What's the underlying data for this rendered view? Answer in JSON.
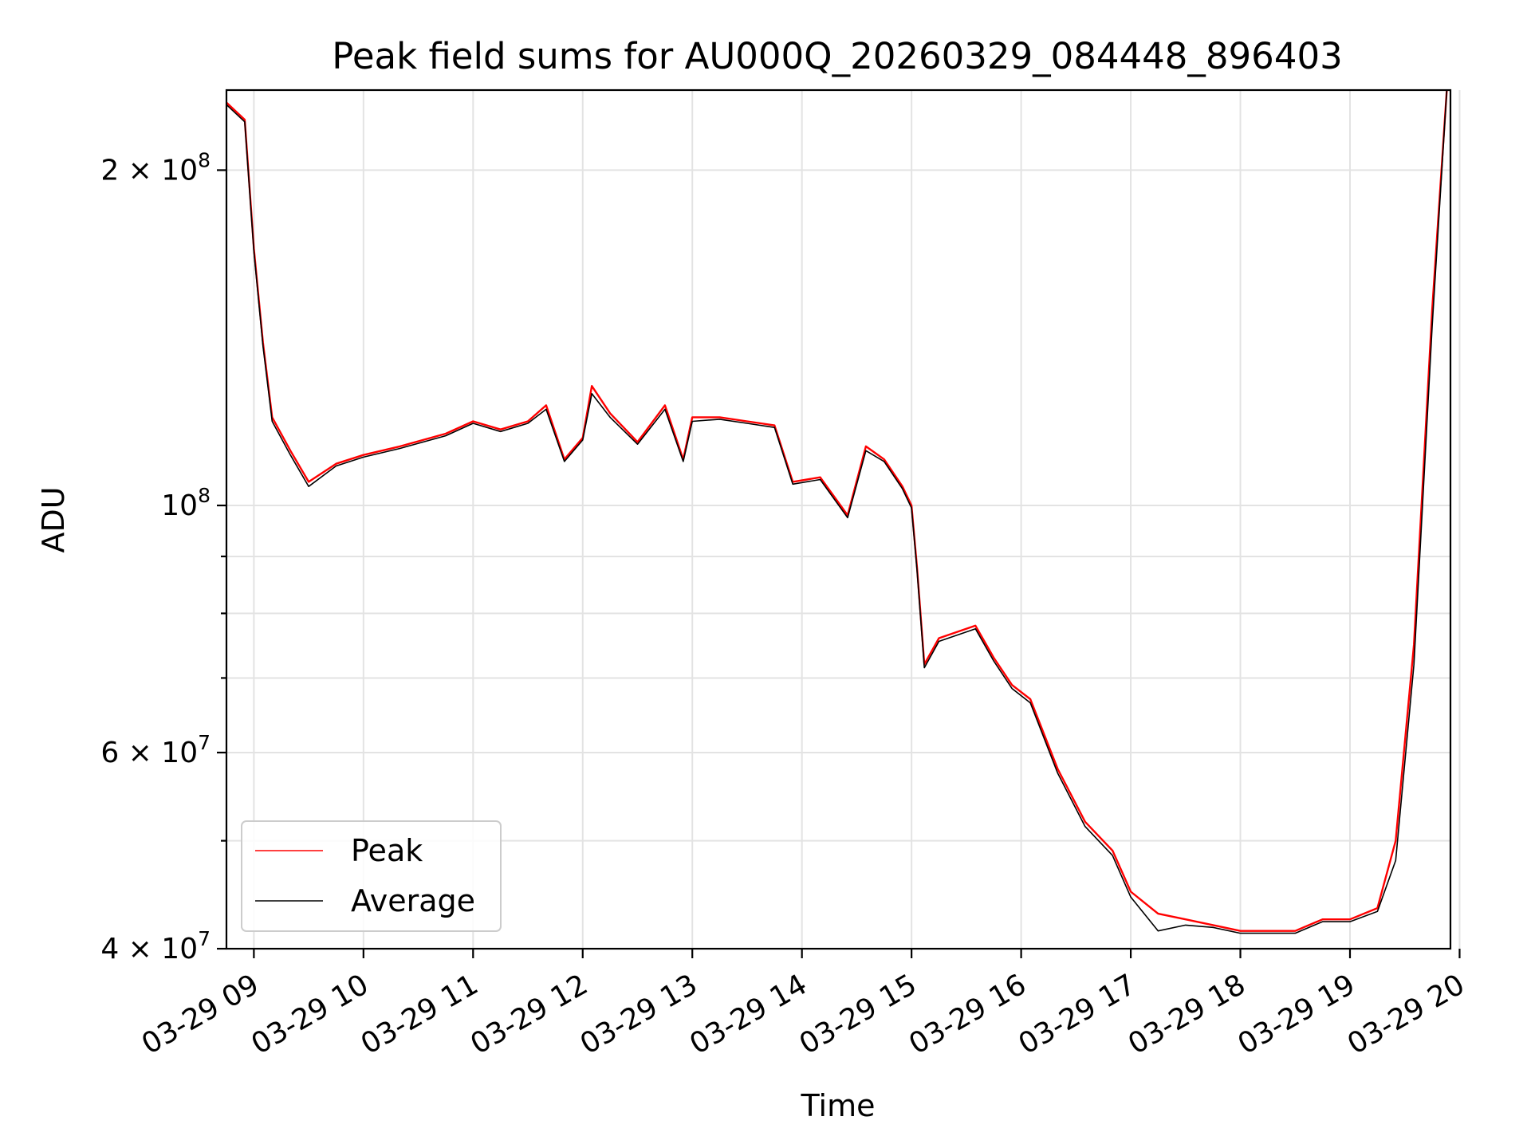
{
  "chart_data": {
    "type": "line",
    "title": "Peak field sums for AU000Q_20260329_084448_896403",
    "xlabel": "Time",
    "ylabel": "ADU",
    "y_scale": "log",
    "grid": true,
    "legend_position": "lower-left",
    "xlim": [
      "2026-03-29 08:45",
      "2026-03-29 19:55"
    ],
    "ylim": [
      40000000,
      236000000
    ],
    "x_ticks": [
      "03-29 09",
      "03-29 10",
      "03-29 11",
      "03-29 12",
      "03-29 13",
      "03-29 14",
      "03-29 15",
      "03-29 16",
      "03-29 17",
      "03-29 18",
      "03-29 19",
      "03-29 20"
    ],
    "y_major_ticks": [
      {
        "value": 40000000,
        "mantissa": "4",
        "exponent": "7"
      },
      {
        "value": 60000000,
        "mantissa": "6",
        "exponent": "7"
      },
      {
        "value": 100000000,
        "mantissa": "",
        "exponent": "8"
      },
      {
        "value": 200000000,
        "mantissa": "2",
        "exponent": "8"
      }
    ],
    "y_minor_grid": [
      50000000,
      70000000,
      80000000,
      90000000,
      300000000
    ],
    "series": [
      {
        "name": "Peak",
        "color": "#ff0000",
        "points": [
          [
            "08:45",
            230000000
          ],
          [
            "08:55",
            222000000
          ],
          [
            "09:00",
            170000000
          ],
          [
            "09:05",
            140000000
          ],
          [
            "09:10",
            120000000
          ],
          [
            "09:20",
            112000000
          ],
          [
            "09:30",
            105000000
          ],
          [
            "09:45",
            109000000
          ],
          [
            "10:00",
            111000000
          ],
          [
            "10:20",
            113000000
          ],
          [
            "10:45",
            116000000
          ],
          [
            "11:00",
            119000000
          ],
          [
            "11:15",
            117000000
          ],
          [
            "11:30",
            119000000
          ],
          [
            "11:40",
            123000000
          ],
          [
            "11:50",
            110000000
          ],
          [
            "12:00",
            115000000
          ],
          [
            "12:05",
            128000000
          ],
          [
            "12:15",
            121000000
          ],
          [
            "12:30",
            114000000
          ],
          [
            "12:45",
            123000000
          ],
          [
            "12:55",
            110000000
          ],
          [
            "13:00",
            120000000
          ],
          [
            "13:15",
            120000000
          ],
          [
            "13:30",
            119000000
          ],
          [
            "13:45",
            118000000
          ],
          [
            "13:55",
            105000000
          ],
          [
            "14:10",
            106000000
          ],
          [
            "14:25",
            98000000
          ],
          [
            "14:35",
            113000000
          ],
          [
            "14:45",
            110000000
          ],
          [
            "14:55",
            104000000
          ],
          [
            "15:00",
            100000000
          ],
          [
            "15:03",
            88000000
          ],
          [
            "15:07",
            72000000
          ],
          [
            "15:15",
            76000000
          ],
          [
            "15:25",
            77000000
          ],
          [
            "15:35",
            78000000
          ],
          [
            "15:45",
            73000000
          ],
          [
            "15:55",
            69000000
          ],
          [
            "16:05",
            67000000
          ],
          [
            "16:20",
            58000000
          ],
          [
            "16:35",
            52000000
          ],
          [
            "16:50",
            49000000
          ],
          [
            "17:00",
            45000000
          ],
          [
            "17:15",
            43000000
          ],
          [
            "17:30",
            42500000
          ],
          [
            "17:45",
            42000000
          ],
          [
            "18:00",
            41500000
          ],
          [
            "18:15",
            41500000
          ],
          [
            "18:30",
            41500000
          ],
          [
            "18:45",
            42500000
          ],
          [
            "19:00",
            42500000
          ],
          [
            "19:15",
            43500000
          ],
          [
            "19:25",
            50000000
          ],
          [
            "19:35",
            75000000
          ],
          [
            "19:45",
            150000000
          ],
          [
            "19:53",
            236000000
          ]
        ]
      },
      {
        "name": "Average",
        "color": "#000000",
        "points": [
          [
            "08:45",
            229000000
          ],
          [
            "08:55",
            221000000
          ],
          [
            "09:00",
            169000000
          ],
          [
            "09:05",
            139000000
          ],
          [
            "09:10",
            119000000
          ],
          [
            "09:20",
            111000000
          ],
          [
            "09:30",
            104000000
          ],
          [
            "09:45",
            108500000
          ],
          [
            "10:00",
            110500000
          ],
          [
            "10:20",
            112500000
          ],
          [
            "10:45",
            115500000
          ],
          [
            "11:00",
            118500000
          ],
          [
            "11:15",
            116500000
          ],
          [
            "11:30",
            118500000
          ],
          [
            "11:40",
            122000000
          ],
          [
            "11:50",
            109500000
          ],
          [
            "12:00",
            114500000
          ],
          [
            "12:05",
            126000000
          ],
          [
            "12:15",
            120000000
          ],
          [
            "12:30",
            113500000
          ],
          [
            "12:45",
            122000000
          ],
          [
            "12:55",
            109500000
          ],
          [
            "13:00",
            119000000
          ],
          [
            "13:15",
            119500000
          ],
          [
            "13:30",
            118500000
          ],
          [
            "13:45",
            117500000
          ],
          [
            "13:55",
            104500000
          ],
          [
            "14:10",
            105500000
          ],
          [
            "14:25",
            97500000
          ],
          [
            "14:35",
            112000000
          ],
          [
            "14:45",
            109500000
          ],
          [
            "14:55",
            103500000
          ],
          [
            "15:00",
            99500000
          ],
          [
            "15:03",
            87500000
          ],
          [
            "15:07",
            71500000
          ],
          [
            "15:15",
            75500000
          ],
          [
            "15:25",
            76500000
          ],
          [
            "15:35",
            77500000
          ],
          [
            "15:45",
            72500000
          ],
          [
            "15:55",
            68500000
          ],
          [
            "16:05",
            66500000
          ],
          [
            "16:20",
            57500000
          ],
          [
            "16:35",
            51500000
          ],
          [
            "16:50",
            48500000
          ],
          [
            "17:00",
            44500000
          ],
          [
            "17:15",
            41500000
          ],
          [
            "17:30",
            42000000
          ],
          [
            "17:45",
            41800000
          ],
          [
            "18:00",
            41300000
          ],
          [
            "18:15",
            41300000
          ],
          [
            "18:30",
            41300000
          ],
          [
            "18:45",
            42300000
          ],
          [
            "19:00",
            42300000
          ],
          [
            "19:15",
            43200000
          ],
          [
            "19:25",
            48000000
          ],
          [
            "19:35",
            72000000
          ],
          [
            "19:45",
            145000000
          ],
          [
            "19:53",
            236000000
          ]
        ]
      }
    ]
  }
}
